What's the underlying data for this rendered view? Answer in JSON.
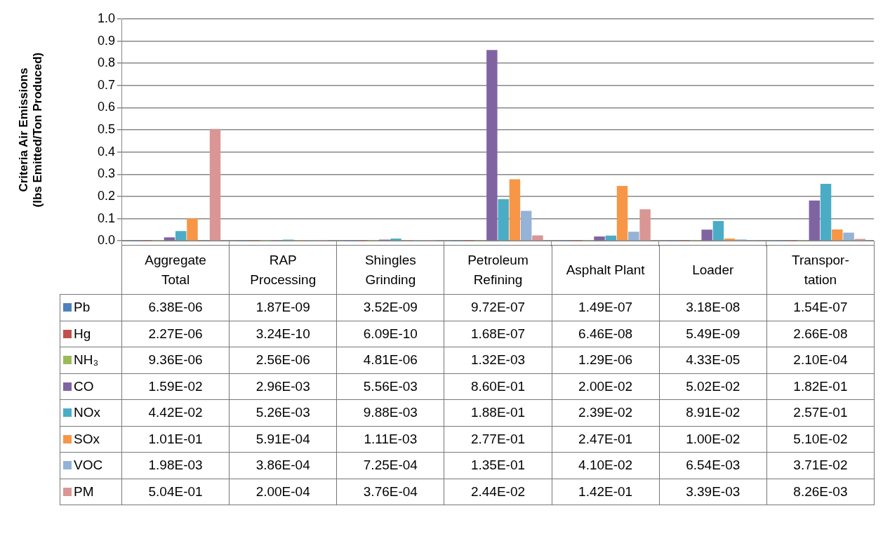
{
  "chart_data": {
    "type": "bar",
    "ylabel": "Criteria Air Emissions\n(lbs Emitted/Ton Produced)",
    "categories": [
      "Aggregate Total",
      "RAP Processing",
      "Shingles Grinding",
      "Petroleum Refining",
      "Asphalt Plant",
      "Loader",
      "Transpor-tation"
    ],
    "series": [
      {
        "name": "Pb",
        "color": "#4f81bd",
        "values": [
          6.38e-06,
          1.87e-09,
          3.52e-09,
          9.72e-07,
          1.49e-07,
          3.18e-08,
          1.54e-07
        ],
        "value_labels": [
          "6.38E-06",
          "1.87E-09",
          "3.52E-09",
          "9.72E-07",
          "1.49E-07",
          "3.18E-08",
          "1.54E-07"
        ]
      },
      {
        "name": "Hg",
        "color": "#c0504d",
        "values": [
          2.27e-06,
          3.24e-10,
          6.09e-10,
          1.68e-07,
          6.46e-08,
          5.49e-09,
          2.66e-08
        ],
        "value_labels": [
          "2.27E-06",
          "3.24E-10",
          "6.09E-10",
          "1.68E-07",
          "6.46E-08",
          "5.49E-09",
          "2.66E-08"
        ]
      },
      {
        "name": "NH₃",
        "color": "#9bbb59",
        "values": [
          9.36e-06,
          2.56e-06,
          4.81e-06,
          0.00132,
          1.29e-06,
          4.33e-05,
          0.00021
        ],
        "value_labels": [
          "9.36E-06",
          "2.56E-06",
          "4.81E-06",
          "1.32E-03",
          "1.29E-06",
          "4.33E-05",
          "2.10E-04"
        ]
      },
      {
        "name": "CO",
        "color": "#8064a2",
        "values": [
          0.0159,
          0.00296,
          0.00556,
          0.86,
          0.02,
          0.0502,
          0.182
        ],
        "value_labels": [
          "1.59E-02",
          "2.96E-03",
          "5.56E-03",
          "8.60E-01",
          "2.00E-02",
          "5.02E-02",
          "1.82E-01"
        ]
      },
      {
        "name": "NOx",
        "color": "#4bacc6",
        "values": [
          0.0442,
          0.00526,
          0.00988,
          0.188,
          0.0239,
          0.0891,
          0.257
        ],
        "value_labels": [
          "4.42E-02",
          "5.26E-03",
          "9.88E-03",
          "1.88E-01",
          "2.39E-02",
          "8.91E-02",
          "2.57E-01"
        ]
      },
      {
        "name": "SOx",
        "color": "#f79646",
        "values": [
          0.101,
          0.000591,
          0.00111,
          0.277,
          0.247,
          0.01,
          0.051
        ],
        "value_labels": [
          "1.01E-01",
          "5.91E-04",
          "1.11E-03",
          "2.77E-01",
          "2.47E-01",
          "1.00E-02",
          "5.10E-02"
        ]
      },
      {
        "name": "VOC",
        "color": "#95b3d7",
        "values": [
          0.00198,
          0.000386,
          0.000725,
          0.135,
          0.041,
          0.00654,
          0.0371
        ],
        "value_labels": [
          "1.98E-03",
          "3.86E-04",
          "7.25E-04",
          "1.35E-01",
          "4.10E-02",
          "6.54E-03",
          "3.71E-02"
        ]
      },
      {
        "name": "PM",
        "color": "#d99694",
        "values": [
          0.504,
          0.0002,
          0.000376,
          0.0244,
          0.142,
          0.00339,
          0.00826
        ],
        "value_labels": [
          "5.04E-01",
          "2.00E-04",
          "3.76E-04",
          "2.44E-02",
          "1.42E-01",
          "3.39E-03",
          "8.26E-03"
        ]
      }
    ],
    "ylim": [
      0,
      1
    ],
    "yticks": [
      {
        "value": 0,
        "label": "0.0"
      },
      {
        "value": 0.1,
        "label": "0.1"
      },
      {
        "value": 0.2,
        "label": "0.2"
      },
      {
        "value": 0.3,
        "label": "0.3"
      },
      {
        "value": 0.4,
        "label": "0.4"
      },
      {
        "value": 0.5,
        "label": "0.5"
      },
      {
        "value": 0.6,
        "label": "0.6"
      },
      {
        "value": 0.7,
        "label": "0.7"
      },
      {
        "value": 0.8,
        "label": "0.8"
      },
      {
        "value": 0.9,
        "label": "0.9"
      },
      {
        "value": 1,
        "label": "1.0"
      }
    ],
    "grid": "y",
    "legend": "bottom"
  }
}
